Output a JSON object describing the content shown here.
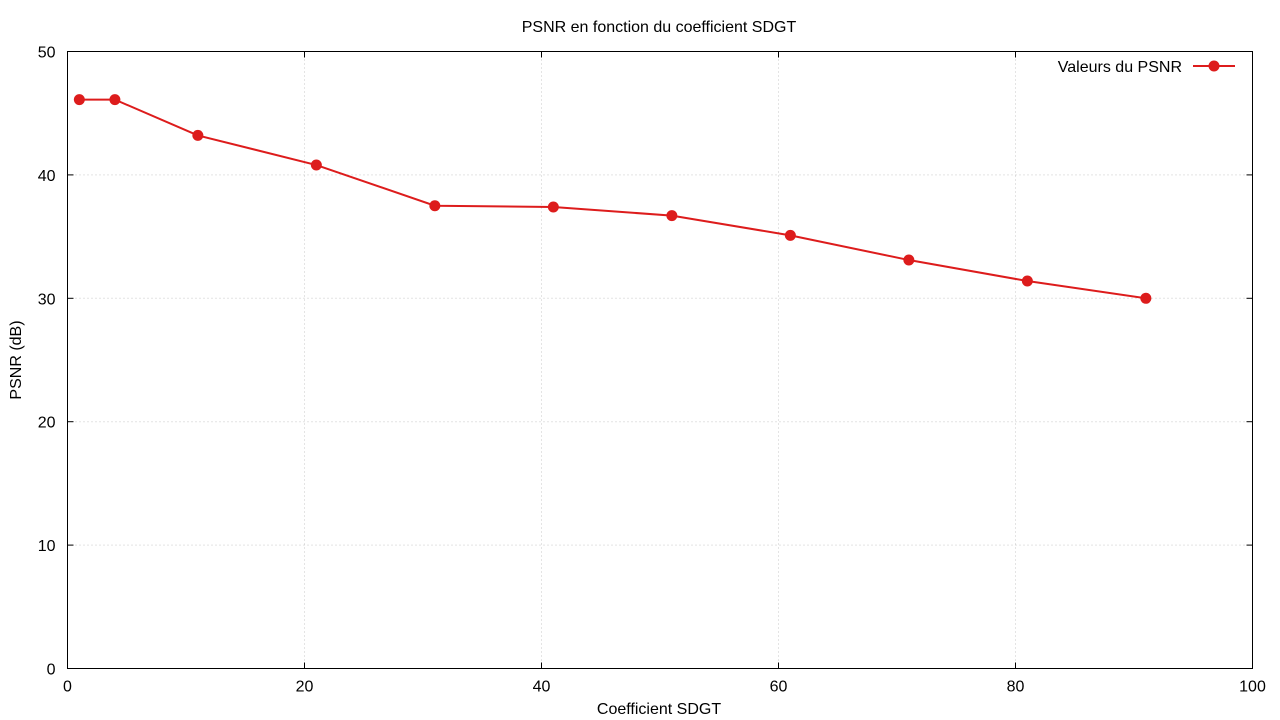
{
  "chart_data": {
    "type": "line",
    "title": "PSNR en fonction du coefficient SDGT",
    "xlabel": "Coefficient SDGT",
    "ylabel": "PSNR (dB)",
    "xlim": [
      0,
      100
    ],
    "ylim": [
      0,
      50
    ],
    "xticks": [
      0,
      20,
      40,
      60,
      80,
      100
    ],
    "yticks": [
      0,
      10,
      20,
      30,
      40,
      50
    ],
    "grid": true,
    "legend_position": "top-right",
    "series": [
      {
        "name": "Valeurs du PSNR",
        "color": "#dd1c1c",
        "marker": "circle",
        "x": [
          1,
          4,
          11,
          21,
          31,
          41,
          51,
          61,
          71,
          81,
          91
        ],
        "y": [
          46.1,
          46.1,
          43.2,
          40.8,
          37.5,
          37.4,
          36.7,
          35.1,
          33.1,
          31.4,
          30.0
        ]
      }
    ]
  }
}
